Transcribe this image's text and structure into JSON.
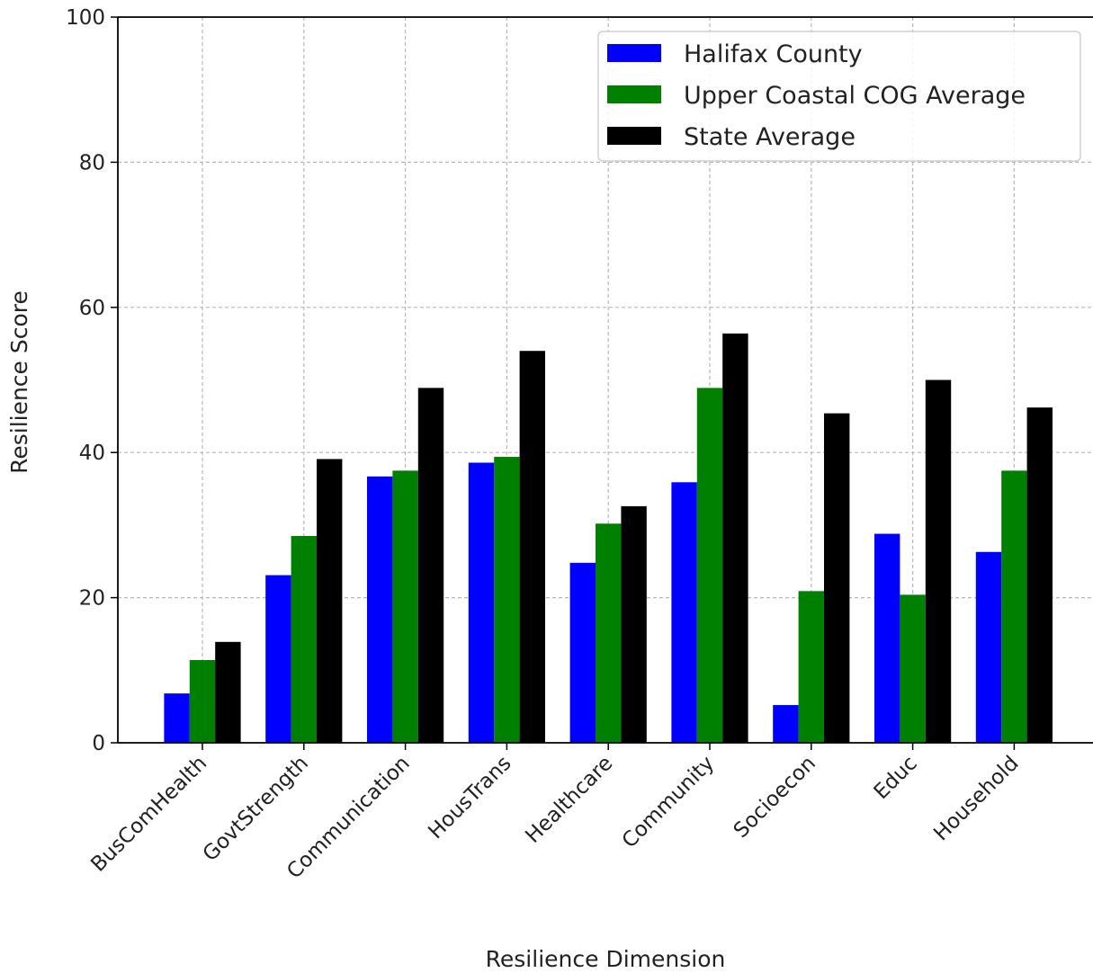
{
  "chart_data": {
    "type": "bar",
    "title": "",
    "xlabel": "Resilience Dimension",
    "ylabel": "Resilience Score",
    "ylim": [
      0,
      100
    ],
    "yticks": [
      0,
      20,
      40,
      60,
      80,
      100
    ],
    "grid": true,
    "legend_position": "top-right",
    "categories": [
      "BusComHealth",
      "GovtStrength",
      "Communication",
      "HousTrans",
      "Healthcare",
      "Community",
      "Socioecon",
      "Educ",
      "Household"
    ],
    "series": [
      {
        "name": "Halifax County",
        "color": "#0000ff",
        "values": [
          6.8,
          23.1,
          36.7,
          38.6,
          24.8,
          35.9,
          5.2,
          28.8,
          26.3
        ]
      },
      {
        "name": "Upper Coastal COG Average",
        "color": "#008000",
        "values": [
          11.4,
          28.5,
          37.5,
          39.4,
          30.2,
          48.9,
          20.9,
          20.4,
          37.5
        ]
      },
      {
        "name": "State Average",
        "color": "#000000",
        "values": [
          13.9,
          39.1,
          48.9,
          54.0,
          32.6,
          56.4,
          45.4,
          50.0,
          46.2
        ]
      }
    ]
  }
}
